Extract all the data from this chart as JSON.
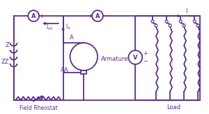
{
  "color": "#5B2D8E",
  "bg_color": "#FFFFFF",
  "fig_width": 3.0,
  "fig_height": 1.65,
  "dpi": 100,
  "label_field_rheostat": "Field Rheostat",
  "label_armature": "Armature",
  "label_load": "Load",
  "label_ish": "I$_{sh}$",
  "label_ia": "I$_a$",
  "label_I": "I",
  "label_Z": "Z",
  "label_ZZ": "ZZ",
  "label_A_ammeter": "A",
  "label_AA": "AA",
  "label_A_label": "A",
  "label_V": "V"
}
